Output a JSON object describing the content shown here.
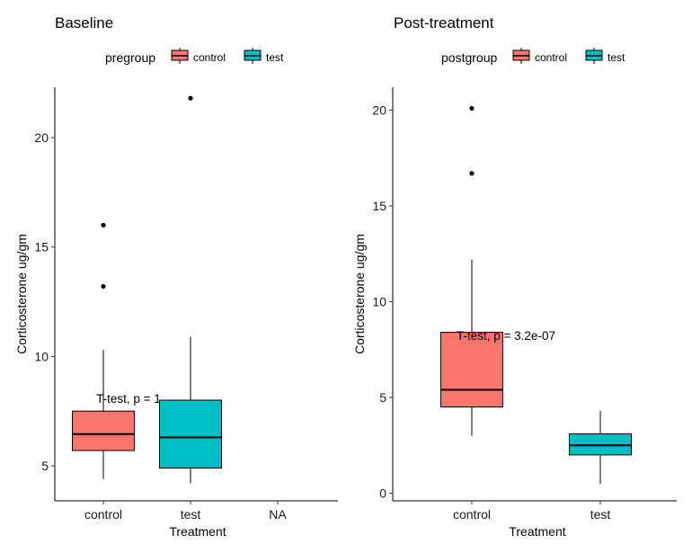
{
  "chart_data": [
    {
      "type": "box",
      "title": "Baseline",
      "xlabel": "Treatment",
      "ylabel": "Corticosterone ug/gm",
      "categories": [
        "control",
        "test",
        "NA"
      ],
      "ylim": [
        3.4,
        22.3
      ],
      "yticks": [
        5,
        10,
        15,
        20
      ],
      "legend": {
        "title": "pregroup",
        "position": "top",
        "entries": [
          "control",
          "test"
        ]
      },
      "boxes": [
        {
          "category": "control",
          "group": "control",
          "color": "#F8766D",
          "min": 4.4,
          "q1": 5.7,
          "median": 6.45,
          "q3": 7.5,
          "max": 10.3,
          "outliers": [
            13.2,
            16.0
          ]
        },
        {
          "category": "test",
          "group": "test",
          "color": "#00BFC4",
          "min": 4.2,
          "q1": 4.9,
          "median": 6.3,
          "q3": 8.0,
          "max": 10.9,
          "outliers": [
            21.8
          ]
        }
      ],
      "annotation": {
        "text": "T-test, p = 1",
        "x": 1.5,
        "y": 7.95
      }
    },
    {
      "type": "box",
      "title": "Post-treatment",
      "xlabel": "Treatment",
      "ylabel": "Corticosterone ug/gm",
      "categories": [
        "control",
        "test"
      ],
      "ylim": [
        -0.4,
        21.2
      ],
      "yticks": [
        0,
        5,
        10,
        15,
        20
      ],
      "legend": {
        "title": "postgroup",
        "position": "top",
        "entries": [
          "control",
          "test"
        ]
      },
      "boxes": [
        {
          "category": "control",
          "group": "control",
          "color": "#F8766D",
          "min": 3.0,
          "q1": 4.5,
          "median": 5.4,
          "q3": 8.4,
          "max": 12.2,
          "outliers": [
            16.7,
            20.1
          ]
        },
        {
          "category": "test",
          "group": "test",
          "color": "#00BFC4",
          "min": 0.5,
          "q1": 2.0,
          "median": 2.5,
          "q3": 3.1,
          "max": 4.3,
          "outliers": []
        }
      ],
      "annotation": {
        "text": "T-test, p = 3.2e-07",
        "x": 1.5,
        "y": 7.9
      }
    }
  ]
}
